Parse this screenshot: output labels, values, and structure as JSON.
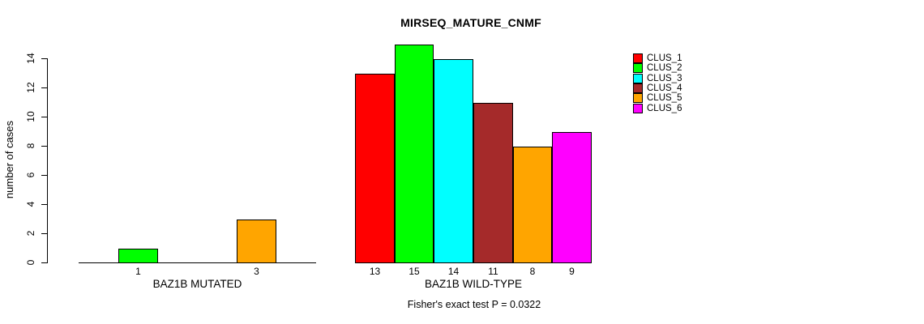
{
  "chart_data": {
    "type": "bar",
    "title": "MIRSEQ_MATURE_CNMF",
    "ylabel": "number of cases",
    "ylim": [
      0,
      14
    ],
    "yticks": [
      0,
      2,
      4,
      6,
      8,
      10,
      12,
      14
    ],
    "grid": false,
    "legend_position": "right",
    "legend_entries": [
      "CLUS_1",
      "CLUS_2",
      "CLUS_3",
      "CLUS_4",
      "CLUS_5",
      "CLUS_6"
    ],
    "colors": [
      "#FF0000",
      "#00FF00",
      "#00FFFF",
      "#A52A2A",
      "#FFA500",
      "#FF00FF"
    ],
    "groups": [
      {
        "label": "BAZ1B MUTATED",
        "values": [
          0,
          1,
          0,
          0,
          3,
          0
        ]
      },
      {
        "label": "BAZ1B WILD-TYPE",
        "values": [
          13,
          15,
          14,
          11,
          8,
          9
        ]
      }
    ],
    "bar_value_labels": [
      [
        "",
        "1",
        "",
        "",
        "3",
        ""
      ],
      [
        "13",
        "15",
        "14",
        "11",
        "8",
        "9"
      ]
    ],
    "annotation": "Fisher's exact test P = 0.0322"
  }
}
